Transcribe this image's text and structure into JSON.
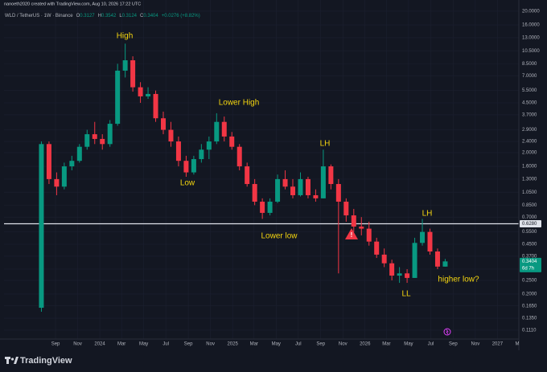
{
  "header": {
    "attribution": "nanoeth2020 created with TradingView.com, Aug 10, 2026 17:22 UTC",
    "symbol": "WLD / TetherUS · 1W · Binance",
    "ohlc_labels": [
      "O",
      "H",
      "L",
      "C"
    ],
    "change": "+0.0276 (+8.82%)"
  },
  "chart_data": {
    "type": "candlestick",
    "log_scale": true,
    "grid": true,
    "up_color": "#089981",
    "down_color": "#f23645",
    "x": [
      "2023-07-24",
      "2023-08-14",
      "2023-09-04",
      "2023-09-25",
      "2023-10-16",
      "2023-11-06",
      "2023-11-27",
      "2023-12-18",
      "2024-01-08",
      "2024-01-29",
      "2024-02-19",
      "2024-03-11",
      "2024-04-01",
      "2024-04-22",
      "2024-05-13",
      "2024-06-03",
      "2024-06-24",
      "2024-07-15",
      "2024-08-05",
      "2024-08-26",
      "2024-09-16",
      "2024-10-07",
      "2024-10-28",
      "2024-11-18",
      "2024-12-09",
      "2024-12-30",
      "2025-01-20",
      "2025-02-10",
      "2025-03-03",
      "2025-03-24",
      "2025-04-14",
      "2025-05-05",
      "2025-05-26",
      "2025-06-16",
      "2025-07-07",
      "2025-07-28",
      "2025-08-18",
      "2025-09-08",
      "2025-09-29",
      "2025-10-20",
      "2025-11-10",
      "2025-12-01",
      "2025-12-22",
      "2026-01-12",
      "2026-02-02",
      "2026-02-23",
      "2026-03-16",
      "2026-04-06",
      "2026-04-27",
      "2026-05-18",
      "2026-06-08",
      "2026-06-29",
      "2026-07-20",
      "2026-08-10"
    ],
    "ohlc": [
      [
        0.16,
        2.4,
        0.15,
        2.3
      ],
      [
        2.3,
        2.4,
        1.2,
        1.3
      ],
      [
        1.3,
        1.45,
        1.0,
        1.15
      ],
      [
        1.15,
        1.7,
        1.1,
        1.6
      ],
      [
        1.6,
        1.9,
        1.5,
        1.75
      ],
      [
        1.75,
        2.3,
        1.7,
        2.2
      ],
      [
        2.2,
        2.9,
        2.1,
        2.7
      ],
      [
        2.7,
        3.3,
        2.3,
        2.5
      ],
      [
        2.5,
        2.7,
        2.1,
        2.3
      ],
      [
        2.3,
        3.4,
        2.2,
        3.2
      ],
      [
        3.2,
        8.5,
        3.1,
        7.6
      ],
      [
        7.6,
        11.8,
        6.8,
        9.0
      ],
      [
        9.0,
        9.6,
        5.4,
        5.8
      ],
      [
        5.8,
        6.3,
        4.5,
        5.0
      ],
      [
        5.0,
        5.8,
        4.8,
        5.2
      ],
      [
        5.2,
        5.5,
        3.3,
        3.5
      ],
      [
        3.5,
        3.9,
        2.7,
        2.9
      ],
      [
        2.9,
        3.3,
        2.2,
        2.4
      ],
      [
        2.4,
        2.6,
        1.6,
        1.75
      ],
      [
        1.75,
        1.9,
        1.35,
        1.45
      ],
      [
        1.45,
        1.9,
        1.4,
        1.8
      ],
      [
        1.8,
        2.3,
        1.7,
        2.1
      ],
      [
        2.1,
        2.6,
        1.8,
        2.4
      ],
      [
        2.4,
        3.8,
        2.3,
        3.3
      ],
      [
        3.3,
        3.6,
        2.4,
        2.6
      ],
      [
        2.6,
        2.8,
        2.1,
        2.2
      ],
      [
        2.2,
        2.3,
        1.5,
        1.6
      ],
      [
        1.6,
        1.7,
        1.15,
        1.2
      ],
      [
        1.2,
        1.3,
        0.85,
        0.9
      ],
      [
        0.9,
        0.95,
        0.68,
        0.75
      ],
      [
        0.75,
        0.95,
        0.72,
        0.9
      ],
      [
        0.9,
        1.4,
        0.88,
        1.3
      ],
      [
        1.3,
        1.5,
        1.1,
        1.15
      ],
      [
        1.15,
        1.3,
        0.95,
        1.0
      ],
      [
        1.0,
        1.45,
        0.98,
        1.3
      ],
      [
        1.3,
        1.35,
        0.95,
        1.0
      ],
      [
        1.0,
        1.1,
        0.9,
        0.95
      ],
      [
        0.95,
        2.1,
        0.95,
        1.6
      ],
      [
        1.6,
        1.65,
        1.1,
        1.2
      ],
      [
        1.2,
        1.3,
        0.28,
        0.9
      ],
      [
        0.9,
        0.95,
        0.65,
        0.72
      ],
      [
        0.72,
        0.8,
        0.55,
        0.6
      ],
      [
        0.6,
        0.7,
        0.52,
        0.58
      ],
      [
        0.58,
        0.65,
        0.44,
        0.47
      ],
      [
        0.47,
        0.5,
        0.36,
        0.38
      ],
      [
        0.38,
        0.42,
        0.31,
        0.33
      ],
      [
        0.33,
        0.35,
        0.25,
        0.27
      ],
      [
        0.27,
        0.31,
        0.24,
        0.28
      ],
      [
        0.28,
        0.3,
        0.24,
        0.26
      ],
      [
        0.26,
        0.5,
        0.26,
        0.46
      ],
      [
        0.46,
        0.68,
        0.44,
        0.55
      ],
      [
        0.55,
        0.58,
        0.38,
        0.4
      ],
      [
        0.4,
        0.42,
        0.3,
        0.3127
      ],
      [
        0.3127,
        0.3542,
        0.3124,
        0.3404
      ]
    ],
    "ylim": [
      0.0924,
      21.07
    ],
    "yticks": [
      {
        "value": 0.111,
        "label": "0.1110"
      },
      {
        "value": 0.135,
        "label": "0.1350"
      },
      {
        "value": 0.165,
        "label": "0.1650"
      },
      {
        "value": 0.2,
        "label": "0.2000"
      },
      {
        "value": 0.25,
        "label": "0.2500"
      },
      {
        "value": 0.3,
        "label": "0.3000"
      },
      {
        "value": 0.37,
        "label": "0.3700"
      },
      {
        "value": 0.45,
        "label": "0.4500"
      },
      {
        "value": 0.55,
        "label": "0.5500"
      },
      {
        "value": 0.7,
        "label": "0.7000"
      },
      {
        "value": 0.85,
        "label": "0.8500"
      },
      {
        "value": 1.05,
        "label": "1.0500"
      },
      {
        "value": 1.3,
        "label": "1.3000"
      },
      {
        "value": 1.6,
        "label": "1.6000"
      },
      {
        "value": 2,
        "label": "2.0000"
      },
      {
        "value": 2.4,
        "label": "2.4000"
      },
      {
        "value": 2.9,
        "label": "2.9000"
      },
      {
        "value": 3.7,
        "label": "3.7000"
      },
      {
        "value": 4.5,
        "label": "4.5000"
      },
      {
        "value": 5.5,
        "label": "5.5000"
      },
      {
        "value": 7,
        "label": "7.0000"
      },
      {
        "value": 8.5,
        "label": "8.5000"
      },
      {
        "value": 10.5,
        "label": "10.5000"
      },
      {
        "value": 13,
        "label": "13.0000"
      },
      {
        "value": 16,
        "label": "16.0000"
      },
      {
        "value": 20,
        "label": "20.0000"
      }
    ],
    "xlim": [
      "2023-04-12",
      "2027-03-01"
    ],
    "xticks": [
      {
        "value": "2023-09-01",
        "label": "Sep"
      },
      {
        "value": "2023-11-01",
        "label": "Nov"
      },
      {
        "value": "2024-01-01",
        "label": "2024"
      },
      {
        "value": "2024-03-01",
        "label": "Mar"
      },
      {
        "value": "2024-05-01",
        "label": "May"
      },
      {
        "value": "2024-07-01",
        "label": "Jul"
      },
      {
        "value": "2024-09-01",
        "label": "Sep"
      },
      {
        "value": "2024-11-01",
        "label": "Nov"
      },
      {
        "value": "2025-01-01",
        "label": "2025"
      },
      {
        "value": "2025-03-01",
        "label": "Mar"
      },
      {
        "value": "2025-05-01",
        "label": "May"
      },
      {
        "value": "2025-07-01",
        "label": "Jul"
      },
      {
        "value": "2025-09-01",
        "label": "Sep"
      },
      {
        "value": "2025-11-01",
        "label": "Nov"
      },
      {
        "value": "2026-01-01",
        "label": "2026"
      },
      {
        "value": "2026-03-01",
        "label": "Mar"
      },
      {
        "value": "2026-05-01",
        "label": "May"
      },
      {
        "value": "2026-07-01",
        "label": "Jul"
      },
      {
        "value": "2026-09-01",
        "label": "Sep"
      },
      {
        "value": "2026-11-01",
        "label": "Nov"
      },
      {
        "value": "2027-01-01",
        "label": "2027"
      },
      {
        "value": "2027-03-01",
        "label": "M"
      }
    ],
    "price_line": {
      "value": 0.628,
      "label": "0.6280"
    },
    "countdown": "6d 7h",
    "annotations": [
      "High",
      "Lower High",
      "Low",
      "LH",
      "Lower low",
      "LH",
      "LL",
      "higher low?"
    ]
  },
  "branding": "TradingView"
}
